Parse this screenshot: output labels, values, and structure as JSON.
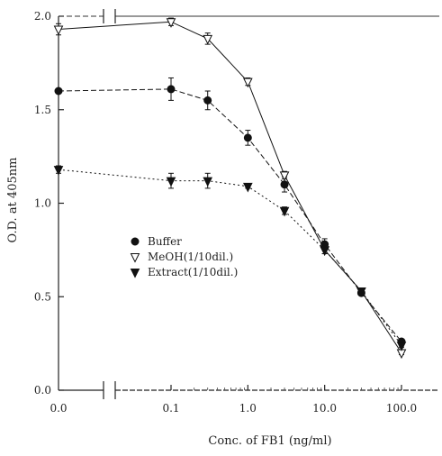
{
  "chart_data": {
    "type": "line",
    "title": "",
    "xlabel": "Conc. of FB1 (ng/ml)",
    "ylabel": "O.D. at 405nm",
    "x_scale": "log, with broken axis for 0.0",
    "x_ticks": [
      "0.0",
      "0.1",
      "1.0",
      "10.0",
      "100.0"
    ],
    "y_ticks": [
      "0.0",
      "0.5",
      "1.0",
      "1.5",
      "2.0"
    ],
    "ylim": [
      0,
      2.0
    ],
    "grid": false,
    "legend_position": "middle-left",
    "series": [
      {
        "name": "Buffer",
        "marker": "filled-circle",
        "color": "#111111",
        "dash": "6,3",
        "points": [
          {
            "x": 0,
            "y": 1.6,
            "err": 0
          },
          {
            "x": 0.1,
            "y": 1.61,
            "err": 0.06
          },
          {
            "x": 0.3,
            "y": 1.55,
            "err": 0.05
          },
          {
            "x": 1,
            "y": 1.35,
            "err": 0.04
          },
          {
            "x": 3,
            "y": 1.1,
            "err": 0.04
          },
          {
            "x": 10,
            "y": 0.78,
            "err": 0.03
          },
          {
            "x": 30,
            "y": 0.52,
            "err": 0.01
          },
          {
            "x": 100,
            "y": 0.26,
            "err": 0.01
          }
        ]
      },
      {
        "name": "MeOH(1/10dil.)",
        "marker": "open-triangle-down",
        "color": "#111111",
        "dash": "none",
        "points": [
          {
            "x": 0,
            "y": 1.93,
            "err": 0.03
          },
          {
            "x": 0.1,
            "y": 1.97,
            "err": 0.02
          },
          {
            "x": 0.3,
            "y": 1.88,
            "err": 0.03
          },
          {
            "x": 1,
            "y": 1.65,
            "err": 0.02
          },
          {
            "x": 3,
            "y": 1.15,
            "err": 0.02
          },
          {
            "x": 10,
            "y": 0.75,
            "err": 0.02
          },
          {
            "x": 30,
            "y": 0.53,
            "err": 0.01
          },
          {
            "x": 100,
            "y": 0.2,
            "err": 0.01
          }
        ]
      },
      {
        "name": "Extract(1/10dil.)",
        "marker": "filled-triangle-down",
        "color": "#111111",
        "dash": "2,3",
        "points": [
          {
            "x": 0,
            "y": 1.18,
            "err": 0.02
          },
          {
            "x": 0.1,
            "y": 1.12,
            "err": 0.04
          },
          {
            "x": 0.3,
            "y": 1.12,
            "err": 0.04
          },
          {
            "x": 1,
            "y": 1.09,
            "err": 0.01
          },
          {
            "x": 3,
            "y": 0.96,
            "err": 0.02
          },
          {
            "x": 10,
            "y": 0.75,
            "err": 0.02
          },
          {
            "x": 30,
            "y": 0.53,
            "err": 0.01
          },
          {
            "x": 100,
            "y": 0.24,
            "err": 0.01
          }
        ]
      }
    ]
  }
}
